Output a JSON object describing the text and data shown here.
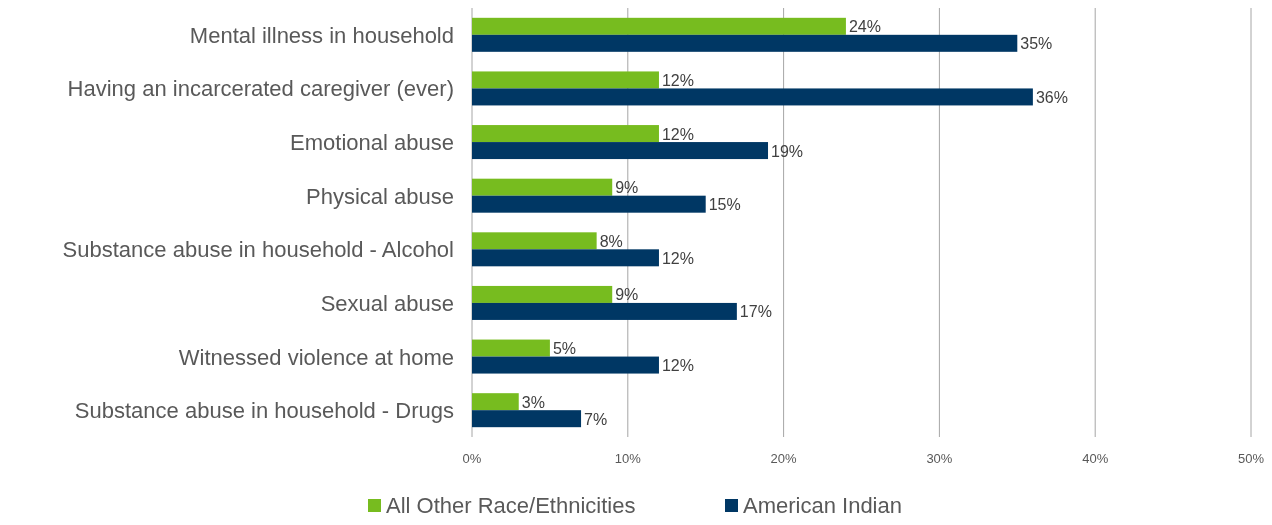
{
  "chart_data": {
    "type": "bar",
    "orientation": "horizontal",
    "categories": [
      "Mental illness in household",
      "Having an incarcerated caregiver (ever)",
      "Emotional abuse",
      "Physical abuse",
      "Substance abuse in household - Alcohol",
      "Sexual abuse",
      "Witnessed violence at home",
      "Substance abuse in household - Drugs"
    ],
    "series": [
      {
        "name": "All Other Race/Ethnicities",
        "color": "#77bc1f",
        "values": [
          24,
          12,
          12,
          9,
          8,
          9,
          5,
          3
        ],
        "value_labels": [
          "24%",
          "12%",
          "12%",
          "9%",
          "8%",
          "9%",
          "5%",
          "3%"
        ]
      },
      {
        "name": "American Indian",
        "color": "#003764",
        "values": [
          35,
          36,
          19,
          15,
          12,
          17,
          12,
          7
        ],
        "value_labels": [
          "35%",
          "36%",
          "19%",
          "15%",
          "12%",
          "17%",
          "12%",
          "7%"
        ]
      }
    ],
    "xlim": [
      0,
      50
    ],
    "xticks": [
      {
        "value": 0,
        "label": "0%"
      },
      {
        "value": 10,
        "label": "10%"
      },
      {
        "value": 20,
        "label": "20%"
      },
      {
        "value": 30,
        "label": "30%"
      },
      {
        "value": 40,
        "label": "40%"
      },
      {
        "value": 50,
        "label": "50%"
      }
    ],
    "grid": "x",
    "legend": "bottom"
  }
}
